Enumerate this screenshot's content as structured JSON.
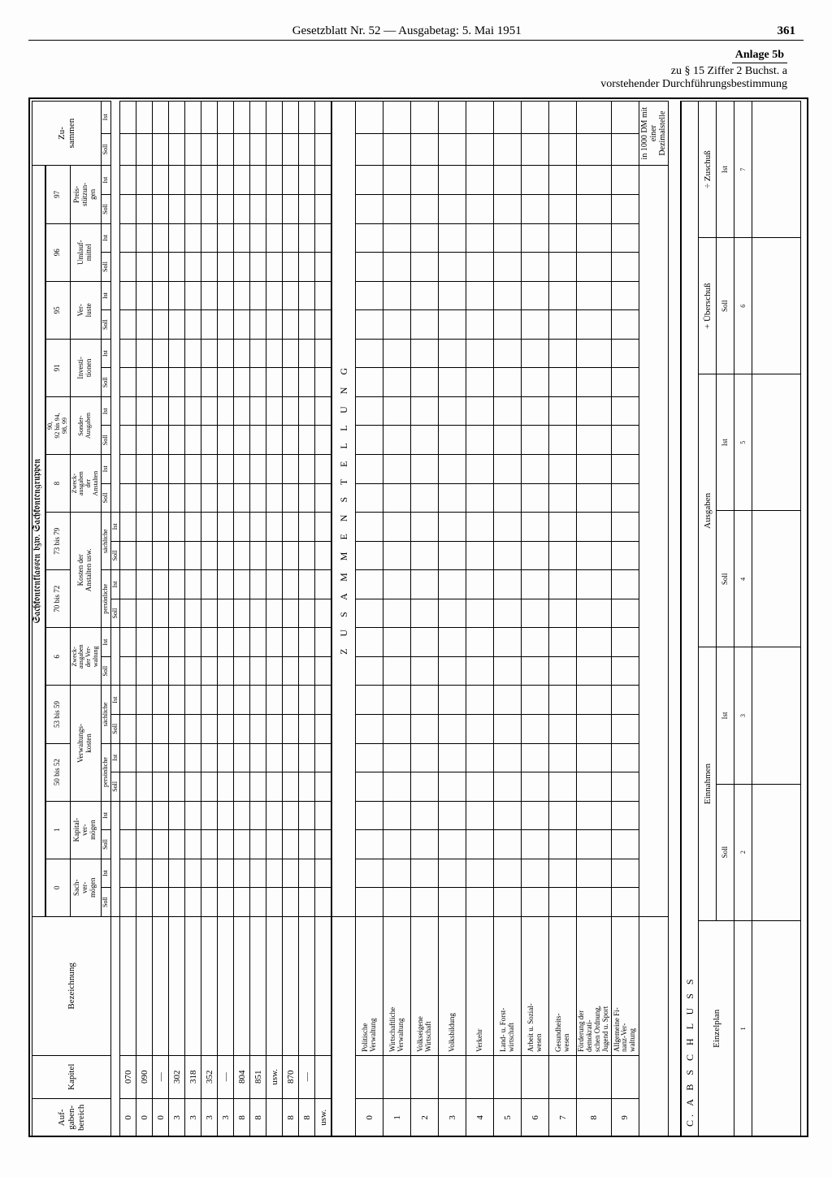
{
  "header": {
    "center": "Gesetzblatt Nr. 52 — Ausgabetag: 5. Mai 1951",
    "page_no": "361"
  },
  "anlage": {
    "title": "Anlage 5b",
    "line1": "zu § 15 Ziffer 2 Buchst. a",
    "line2": "vorstehender Durchführungsbestimmung"
  },
  "main": {
    "group_header": "Sachkontenklassen bzw. Sachkontengruppen",
    "cols": {
      "aufgaben": "Auf-\ngaben-\nbereich",
      "kapitel": "Kapitel",
      "bezeichnung": "Bezeichnung",
      "c0_num": "0",
      "c0": "Sach-\nver-\nmögen",
      "c1_num": "1",
      "c1": "Kapital-\nver-\nmögen",
      "c5052_num": "50 bis 52",
      "c5359_num": "53 bis 59",
      "verw": "Verwaltungs-\nkosten",
      "pers": "persönliche",
      "sach": "sächliche",
      "c6_num": "6",
      "c6": "Zweck-\nausgaben\nder Ver-\nwaltung",
      "c7072_num": "70 bis 72",
      "c7379_num": "73 bis 79",
      "kostanst": "Kosten der\nAnstalten usw.",
      "c8_num": "8",
      "c8": "Zweck-\nausgaben\nder\nAnstalten",
      "c90_num": "90,\n92 bis 94,\n98, 99",
      "c90": "Sonder-\nAusgaben",
      "c91_num": "91",
      "c91": "Investi-\ntionen",
      "c95_num": "95",
      "c95": "Ver-\nluste",
      "c96_num": "96",
      "c96": "Umlauf-\nmittel",
      "c97_num": "97",
      "c97": "Preis-\nstützun-\ngen",
      "zus": "Zu-\nsammen",
      "soll": "Soll",
      "ist": "Ist"
    },
    "rows_top": [
      {
        "a": "0",
        "k": "070",
        "b": ""
      },
      {
        "a": "0",
        "k": "090",
        "b": ""
      },
      {
        "a": "0",
        "k": "—",
        "b": ""
      },
      {
        "a": "3",
        "k": "302",
        "b": ""
      },
      {
        "a": "3",
        "k": "318",
        "b": ""
      },
      {
        "a": "3",
        "k": "352",
        "b": ""
      },
      {
        "a": "3",
        "k": "—",
        "b": ""
      },
      {
        "a": "8",
        "k": "804",
        "b": ""
      },
      {
        "a": "8",
        "k": "851",
        "b": ""
      },
      {
        "a": "",
        "k": "usw.",
        "b": ""
      },
      {
        "a": "8",
        "k": "870",
        "b": ""
      },
      {
        "a": "8",
        "k": "—",
        "b": ""
      },
      {
        "a": "usw.",
        "k": "",
        "b": ""
      }
    ],
    "zusammen_title": "Z U S A M M E N S T E L L U N G",
    "rows_mid": [
      {
        "a": "0",
        "b": "Politische\nVerwaltung"
      },
      {
        "a": "1",
        "b": "Wirtschaftliche\nVerwaltung"
      },
      {
        "a": "2",
        "b": "Volkseigene\nWirtschaft"
      },
      {
        "a": "3",
        "b": "Volksbildung"
      },
      {
        "a": "4",
        "b": "Verkehr"
      },
      {
        "a": "5",
        "b": "Land- u. Forst-\nwirtschaft"
      },
      {
        "a": "6",
        "b": "Arbeit u. Sozial-\nwesen"
      },
      {
        "a": "7",
        "b": "Gesundheits-\nwesen"
      },
      {
        "a": "8",
        "b": "Förderung der\ndemokrati-\nschen Ordnung,\nJugend u. Sport"
      },
      {
        "a": "9",
        "b": "Allgemeine Fi-\nnanz-Ver-\nwaltung"
      }
    ],
    "unit_note": "in 1000 DM mit einer Dezimalstelle"
  },
  "abschluss": {
    "title": "C.  A B S C H L U S S",
    "einzelplan": "Einzelplan",
    "einnahmen": "Einnahmen",
    "ausgaben": "Ausgaben",
    "uebersch": "+ Überschuß",
    "zuschuss": "÷ Zuschuß",
    "soll": "Soll",
    "ist": "Ist",
    "nums": [
      "1",
      "2",
      "3",
      "4",
      "5",
      "6",
      "7"
    ]
  }
}
